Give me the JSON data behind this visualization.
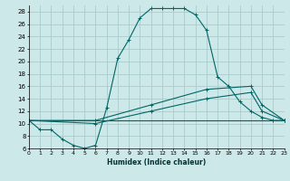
{
  "xlabel": "Humidex (Indice chaleur)",
  "xlim": [
    0,
    23
  ],
  "ylim": [
    6,
    29
  ],
  "yticks": [
    6,
    8,
    10,
    12,
    14,
    16,
    18,
    20,
    22,
    24,
    26,
    28
  ],
  "xticks": [
    0,
    1,
    2,
    3,
    4,
    5,
    6,
    7,
    8,
    9,
    10,
    11,
    12,
    13,
    14,
    15,
    16,
    17,
    18,
    19,
    20,
    21,
    22,
    23
  ],
  "bg_color": "#cce8e8",
  "grid_color": "#aacccc",
  "line_color": "#006666",
  "line1_x": [
    0,
    1,
    2,
    3,
    4,
    5,
    6,
    7,
    8,
    9,
    10,
    11,
    12,
    13,
    14,
    15,
    16,
    17,
    18,
    19,
    20,
    21,
    22,
    23
  ],
  "line1_y": [
    10.5,
    9.0,
    9.0,
    7.5,
    6.5,
    6.0,
    6.5,
    12.5,
    20.5,
    23.5,
    27.0,
    28.5,
    28.5,
    28.5,
    28.5,
    27.5,
    25.0,
    17.5,
    16.0,
    13.5,
    12.0,
    11.0,
    10.5,
    10.5
  ],
  "line2_x": [
    0,
    6,
    11,
    16,
    20,
    21,
    23
  ],
  "line2_y": [
    10.5,
    10.5,
    13.0,
    15.5,
    16.0,
    13.0,
    10.5
  ],
  "line3_x": [
    0,
    6,
    11,
    16,
    20,
    21,
    23
  ],
  "line3_y": [
    10.5,
    10.0,
    12.0,
    14.0,
    15.0,
    12.0,
    10.5
  ],
  "line4_x": [
    0,
    23
  ],
  "line4_y": [
    10.5,
    10.5
  ]
}
